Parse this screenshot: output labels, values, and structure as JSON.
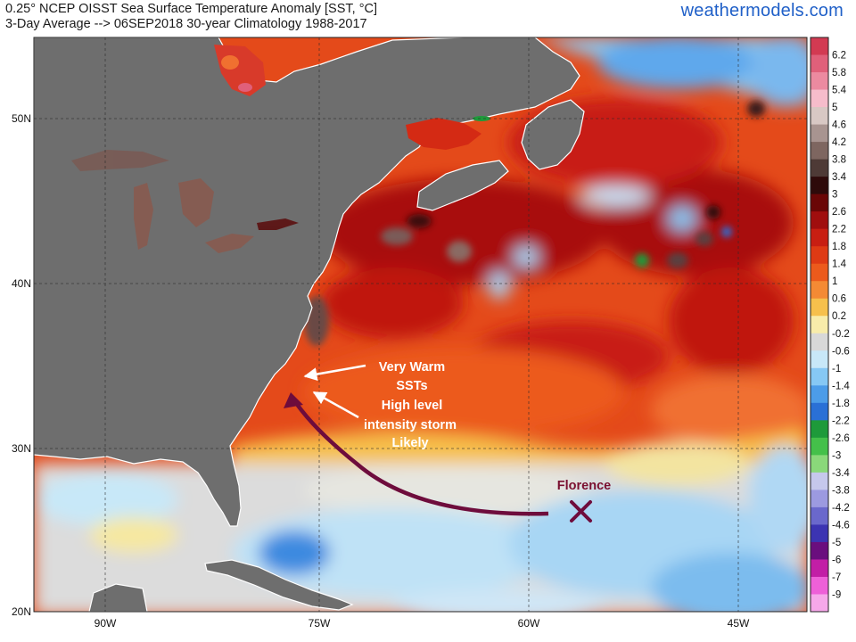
{
  "header": {
    "title_line1": "0.25° NCEP OISST Sea Surface Temperature Anomaly [SST, °C]",
    "title_line2": "3-Day Average --> 06SEP2018   30-year Climatology 1988-2017",
    "brand": "weathermodels.com"
  },
  "axes": {
    "lat_labels": [
      "50N",
      "40N",
      "30N",
      "20N"
    ],
    "lon_labels": [
      "90W",
      "75W",
      "60W",
      "45W"
    ]
  },
  "colorbar": {
    "labels": [
      "6.2",
      "5.8",
      "5.4",
      "5",
      "4.6",
      "4.2",
      "3.8",
      "3.4",
      "3",
      "2.6",
      "2.2",
      "1.8",
      "1.4",
      "1",
      "0.6",
      "0.2",
      "-0.2",
      "-0.6",
      "-1",
      "-1.4",
      "-1.8",
      "-2.2",
      "-2.6",
      "-3",
      "-3.4",
      "-3.8",
      "-4.2",
      "-4.6",
      "-5",
      "-6",
      "-7",
      "-9"
    ],
    "colors": [
      "#d23a52",
      "#e0607a",
      "#ec8aa0",
      "#f6bccb",
      "#d8c8c4",
      "#a89490",
      "#7e6660",
      "#4e3a36",
      "#2e0a0a",
      "#6a0606",
      "#a00e0e",
      "#c81e12",
      "#de3a14",
      "#ec5a1c",
      "#f48a34",
      "#f6c04c",
      "#f8ecaa",
      "#d8d8d8",
      "#c8e8f8",
      "#86c8f4",
      "#4c9ce8",
      "#2a70d6",
      "#1e9a3a",
      "#44c04a",
      "#8ad87a",
      "#c6c8ec",
      "#9c9ae0",
      "#6a68cc",
      "#3c34b2",
      "#6a0e7e",
      "#c21ea6",
      "#ee60d8",
      "#f6a8ea"
    ]
  },
  "annotations": {
    "warm_line1": "Very Warm",
    "warm_line2": "SSTs",
    "storm_line1": "High level",
    "storm_line2": "intensity storm",
    "storm_line3": "Likely",
    "storm_name": "Florence",
    "storm_marker": "X"
  },
  "colors": {
    "land": "#6e6e6e",
    "track": "#6e0c3c",
    "storm_label": "#7a1030"
  }
}
